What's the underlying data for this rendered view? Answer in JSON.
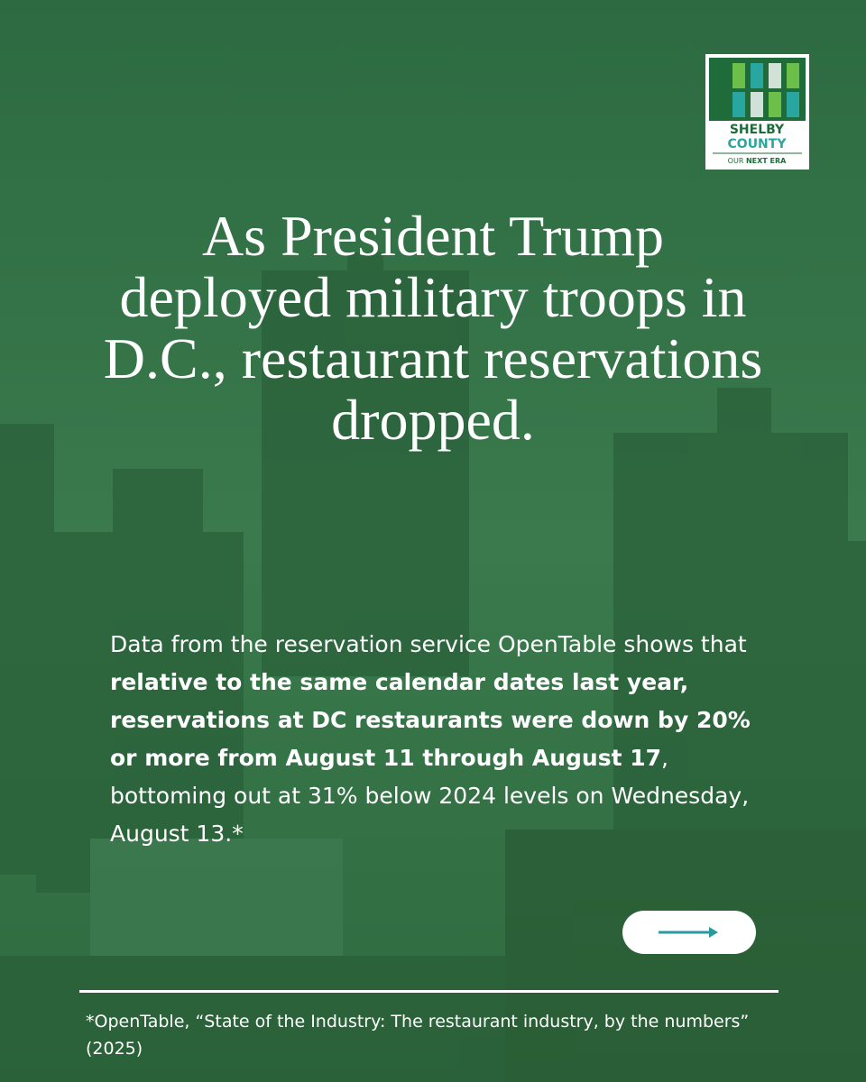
{
  "logo": {
    "line1": "SHELBY",
    "line2": "COUNTY",
    "tagline_a": "OUR",
    "tagline_b": "NEXT ERA"
  },
  "title": "As President Trump deployed military troops in D.C., restaurant reservations dropped.",
  "body": [
    {
      "text": "Data from the reservation service OpenTable shows that ",
      "bold": false
    },
    {
      "text": "relative to the same calendar dates last year, reservations at DC restaurants were down by 20% or more from August 11 through August 17",
      "bold": true
    },
    {
      "text": ", bottoming out at 31% below 2024 levels on Wednesday, August 13.*",
      "bold": false
    }
  ],
  "footnote": "*OpenTable, “State of the Industry: The restaurant industry, by the numbers” (2025)"
}
